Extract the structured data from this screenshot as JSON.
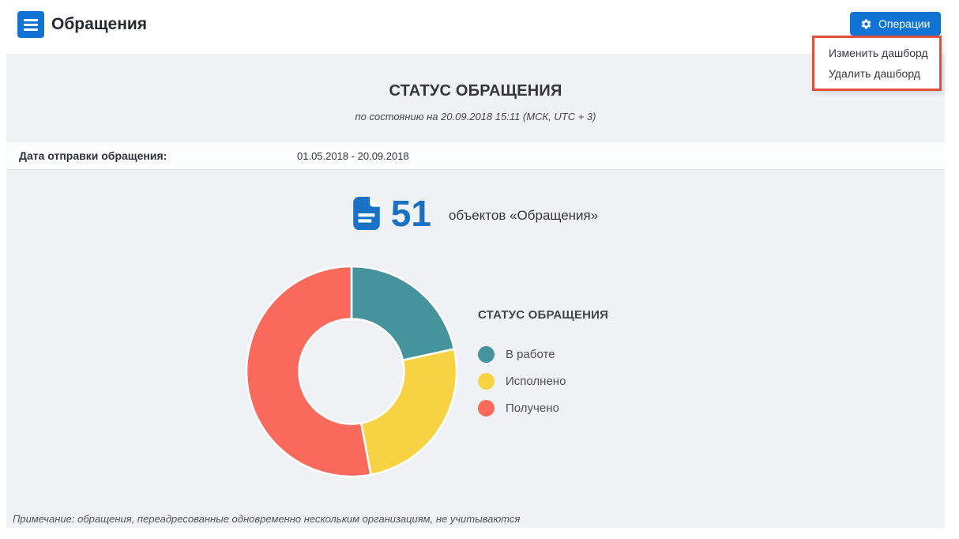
{
  "header": {
    "title": "Обращения",
    "operations_label": "Операции"
  },
  "menu": {
    "items": [
      {
        "label": "Изменить дашборд"
      },
      {
        "label": "Удалить дашборд"
      }
    ],
    "highlight_color": "#e2503c"
  },
  "dashboard": {
    "title": "СТАТУС ОБРАЩЕНИЯ",
    "subtitle": "по состоянию на 20.09.2018 15:11 (МСК, UTC + 3)",
    "filter_label": "Дата отправки обращения:",
    "filter_value": "01.05.2018 - 20.09.2018",
    "total_count": "51",
    "total_label": "объектов «Обращения»",
    "note": "Примечание: обращения, переадресованные одновременно нескольким организациям, не учитываются"
  },
  "chart_data": {
    "type": "pie",
    "title": "СТАТУС ОБРАЩЕНИЯ",
    "categories": [
      "В работе",
      "Исполнено",
      "Получено"
    ],
    "values": [
      11,
      13,
      27
    ],
    "colors": [
      "#45939c",
      "#f7d344",
      "#fa6a5c"
    ],
    "total": 51,
    "donut_inner_ratio": 0.5,
    "start_angle_deg": 0,
    "direction": "clockwise",
    "legend_position": "right",
    "legend_title": "СТАТУС ОБРАЩЕНИЯ"
  },
  "colors": {
    "accent_blue": "#1173d4",
    "count_blue": "#1a70c5",
    "panel_bg": "#eff2f5"
  }
}
